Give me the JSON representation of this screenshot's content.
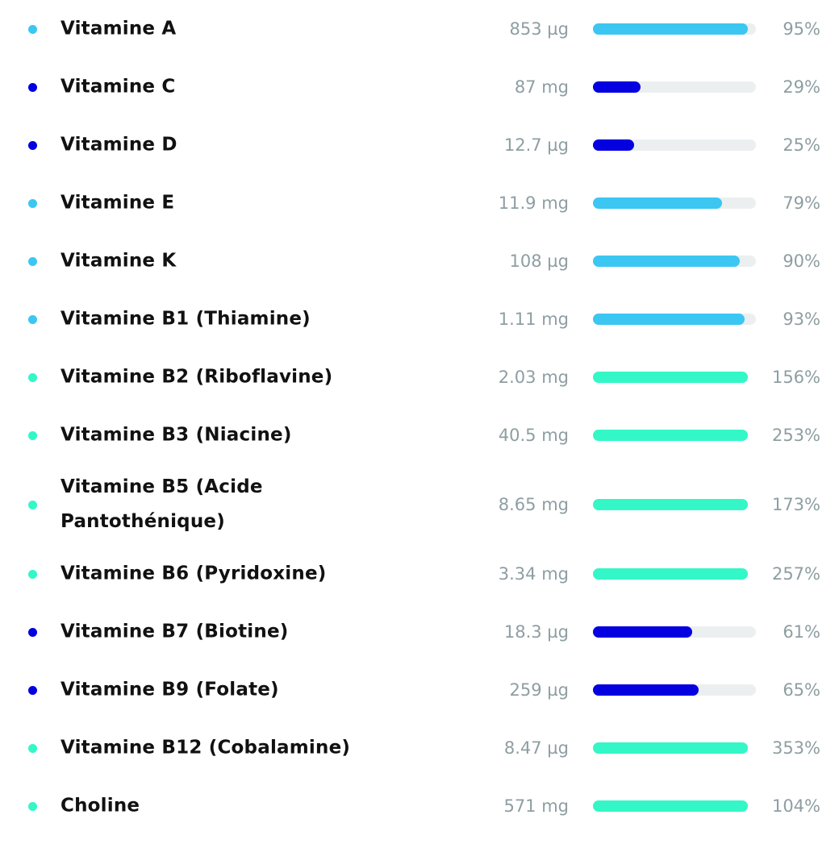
{
  "colors": {
    "low": "#0500e0",
    "medium": "#3cc6f2",
    "high": "#33f7c6",
    "track": "#eceff0",
    "secondary_text": "#8e9ea2"
  },
  "nutrients": [
    {
      "name": "Vitamine A",
      "amount": "853 µg",
      "percent": "95%",
      "value": 95,
      "level": "medium"
    },
    {
      "name": "Vitamine C",
      "amount": "87 mg",
      "percent": "29%",
      "value": 29,
      "level": "low"
    },
    {
      "name": "Vitamine D",
      "amount": "12.7 µg",
      "percent": "25%",
      "value": 25,
      "level": "low"
    },
    {
      "name": "Vitamine E",
      "amount": "11.9 mg",
      "percent": "79%",
      "value": 79,
      "level": "medium"
    },
    {
      "name": "Vitamine K",
      "amount": "108 µg",
      "percent": "90%",
      "value": 90,
      "level": "medium"
    },
    {
      "name": "Vitamine B1 (Thiamine)",
      "amount": "1.11 mg",
      "percent": "93%",
      "value": 93,
      "level": "medium"
    },
    {
      "name": "Vitamine B2 (Riboflavine)",
      "amount": "2.03 mg",
      "percent": "156%",
      "value": 156,
      "level": "high"
    },
    {
      "name": "Vitamine B3 (Niacine)",
      "amount": "40.5 mg",
      "percent": "253%",
      "value": 253,
      "level": "high"
    },
    {
      "name": "Vitamine B5 (Acide Pantothénique)",
      "amount": "8.65 mg",
      "percent": "173%",
      "value": 173,
      "level": "high"
    },
    {
      "name": "Vitamine B6 (Pyridoxine)",
      "amount": "3.34 mg",
      "percent": "257%",
      "value": 257,
      "level": "high"
    },
    {
      "name": "Vitamine B7 (Biotine)",
      "amount": "18.3 µg",
      "percent": "61%",
      "value": 61,
      "level": "low"
    },
    {
      "name": "Vitamine B9 (Folate)",
      "amount": "259 µg",
      "percent": "65%",
      "value": 65,
      "level": "low"
    },
    {
      "name": "Vitamine B12 (Cobalamine)",
      "amount": "8.47 µg",
      "percent": "353%",
      "value": 353,
      "level": "high"
    },
    {
      "name": "Choline",
      "amount": "571 mg",
      "percent": "104%",
      "value": 104,
      "level": "high"
    }
  ]
}
